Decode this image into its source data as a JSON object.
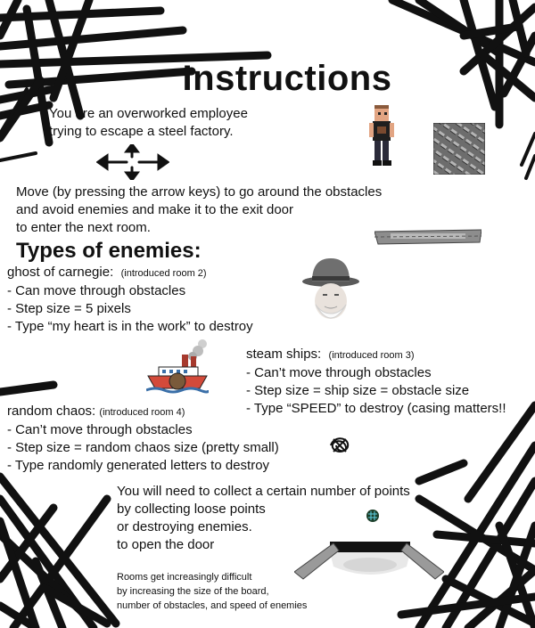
{
  "title": "Instructions",
  "intro": [
    "You are an overworked employee",
    "trying to escape a steel factory."
  ],
  "move": [
    "Move (by pressing the arrow keys) to go around the obstacles",
    "and avoid enemies and make it to the exit door",
    "to enter the next room."
  ],
  "enemies_heading": "Types of enemies:",
  "ghost": {
    "name": "ghost of carnegie:",
    "intro": "(introduced room 2)",
    "lines": [
      "- Can move through obstacles",
      "- Step size = 5 pixels",
      "- Type “my heart is in the work” to destroy"
    ]
  },
  "ships": {
    "name": "steam ships:",
    "intro": "(introduced room 3)",
    "lines": [
      "- Can’t move through obstacles",
      "- Step size = ship size = obstacle size",
      "- Type “SPEED” to destroy (casing matters!!"
    ]
  },
  "chaos": {
    "name": "random chaos:",
    "intro": "(introduced room 4)",
    "lines": [
      "- Can’t move through obstacles",
      "- Step size = random chaos size (pretty small)",
      "- Type randomly generated letters to destroy"
    ]
  },
  "points": [
    "You will need to collect a certain number of points",
    "by collecting loose points",
    "or destroying enemies.",
    "to open the door"
  ],
  "rooms": [
    "Rooms get increasingly difficult",
    "by increasing the size of the board,",
    "number of obstacles, and speed of enemies"
  ]
}
